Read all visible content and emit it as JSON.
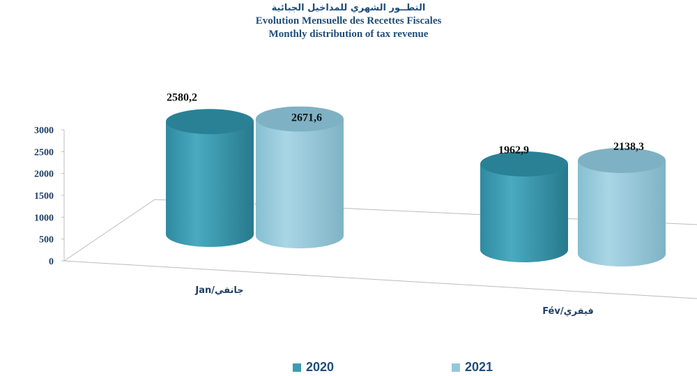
{
  "chart_data": {
    "type": "bar",
    "title_ar": "التطــور الشهري للمداخيل الجبائية",
    "title_fr": "Evolution Mensuelle des Recettes Fiscales",
    "title_en": "Monthly distribution of tax revenue",
    "categories": [
      "Jan/جانفي",
      "Fév/فيفري"
    ],
    "series": [
      {
        "name": "2020",
        "values": [
          2580.2,
          1962.9
        ],
        "labels": [
          "2580,2",
          "1962,9"
        ],
        "color": "#3c9bb0"
      },
      {
        "name": "2021",
        "values": [
          2671.6,
          2138.3
        ],
        "labels": [
          "2671,6",
          "2138,3"
        ],
        "color": "#93c8da"
      }
    ],
    "yticks": [
      "0",
      "500",
      "1000",
      "1500",
      "2000",
      "2500",
      "3000"
    ],
    "ylim": [
      0,
      3000
    ],
    "legend_position": "bottom",
    "grid": false
  }
}
